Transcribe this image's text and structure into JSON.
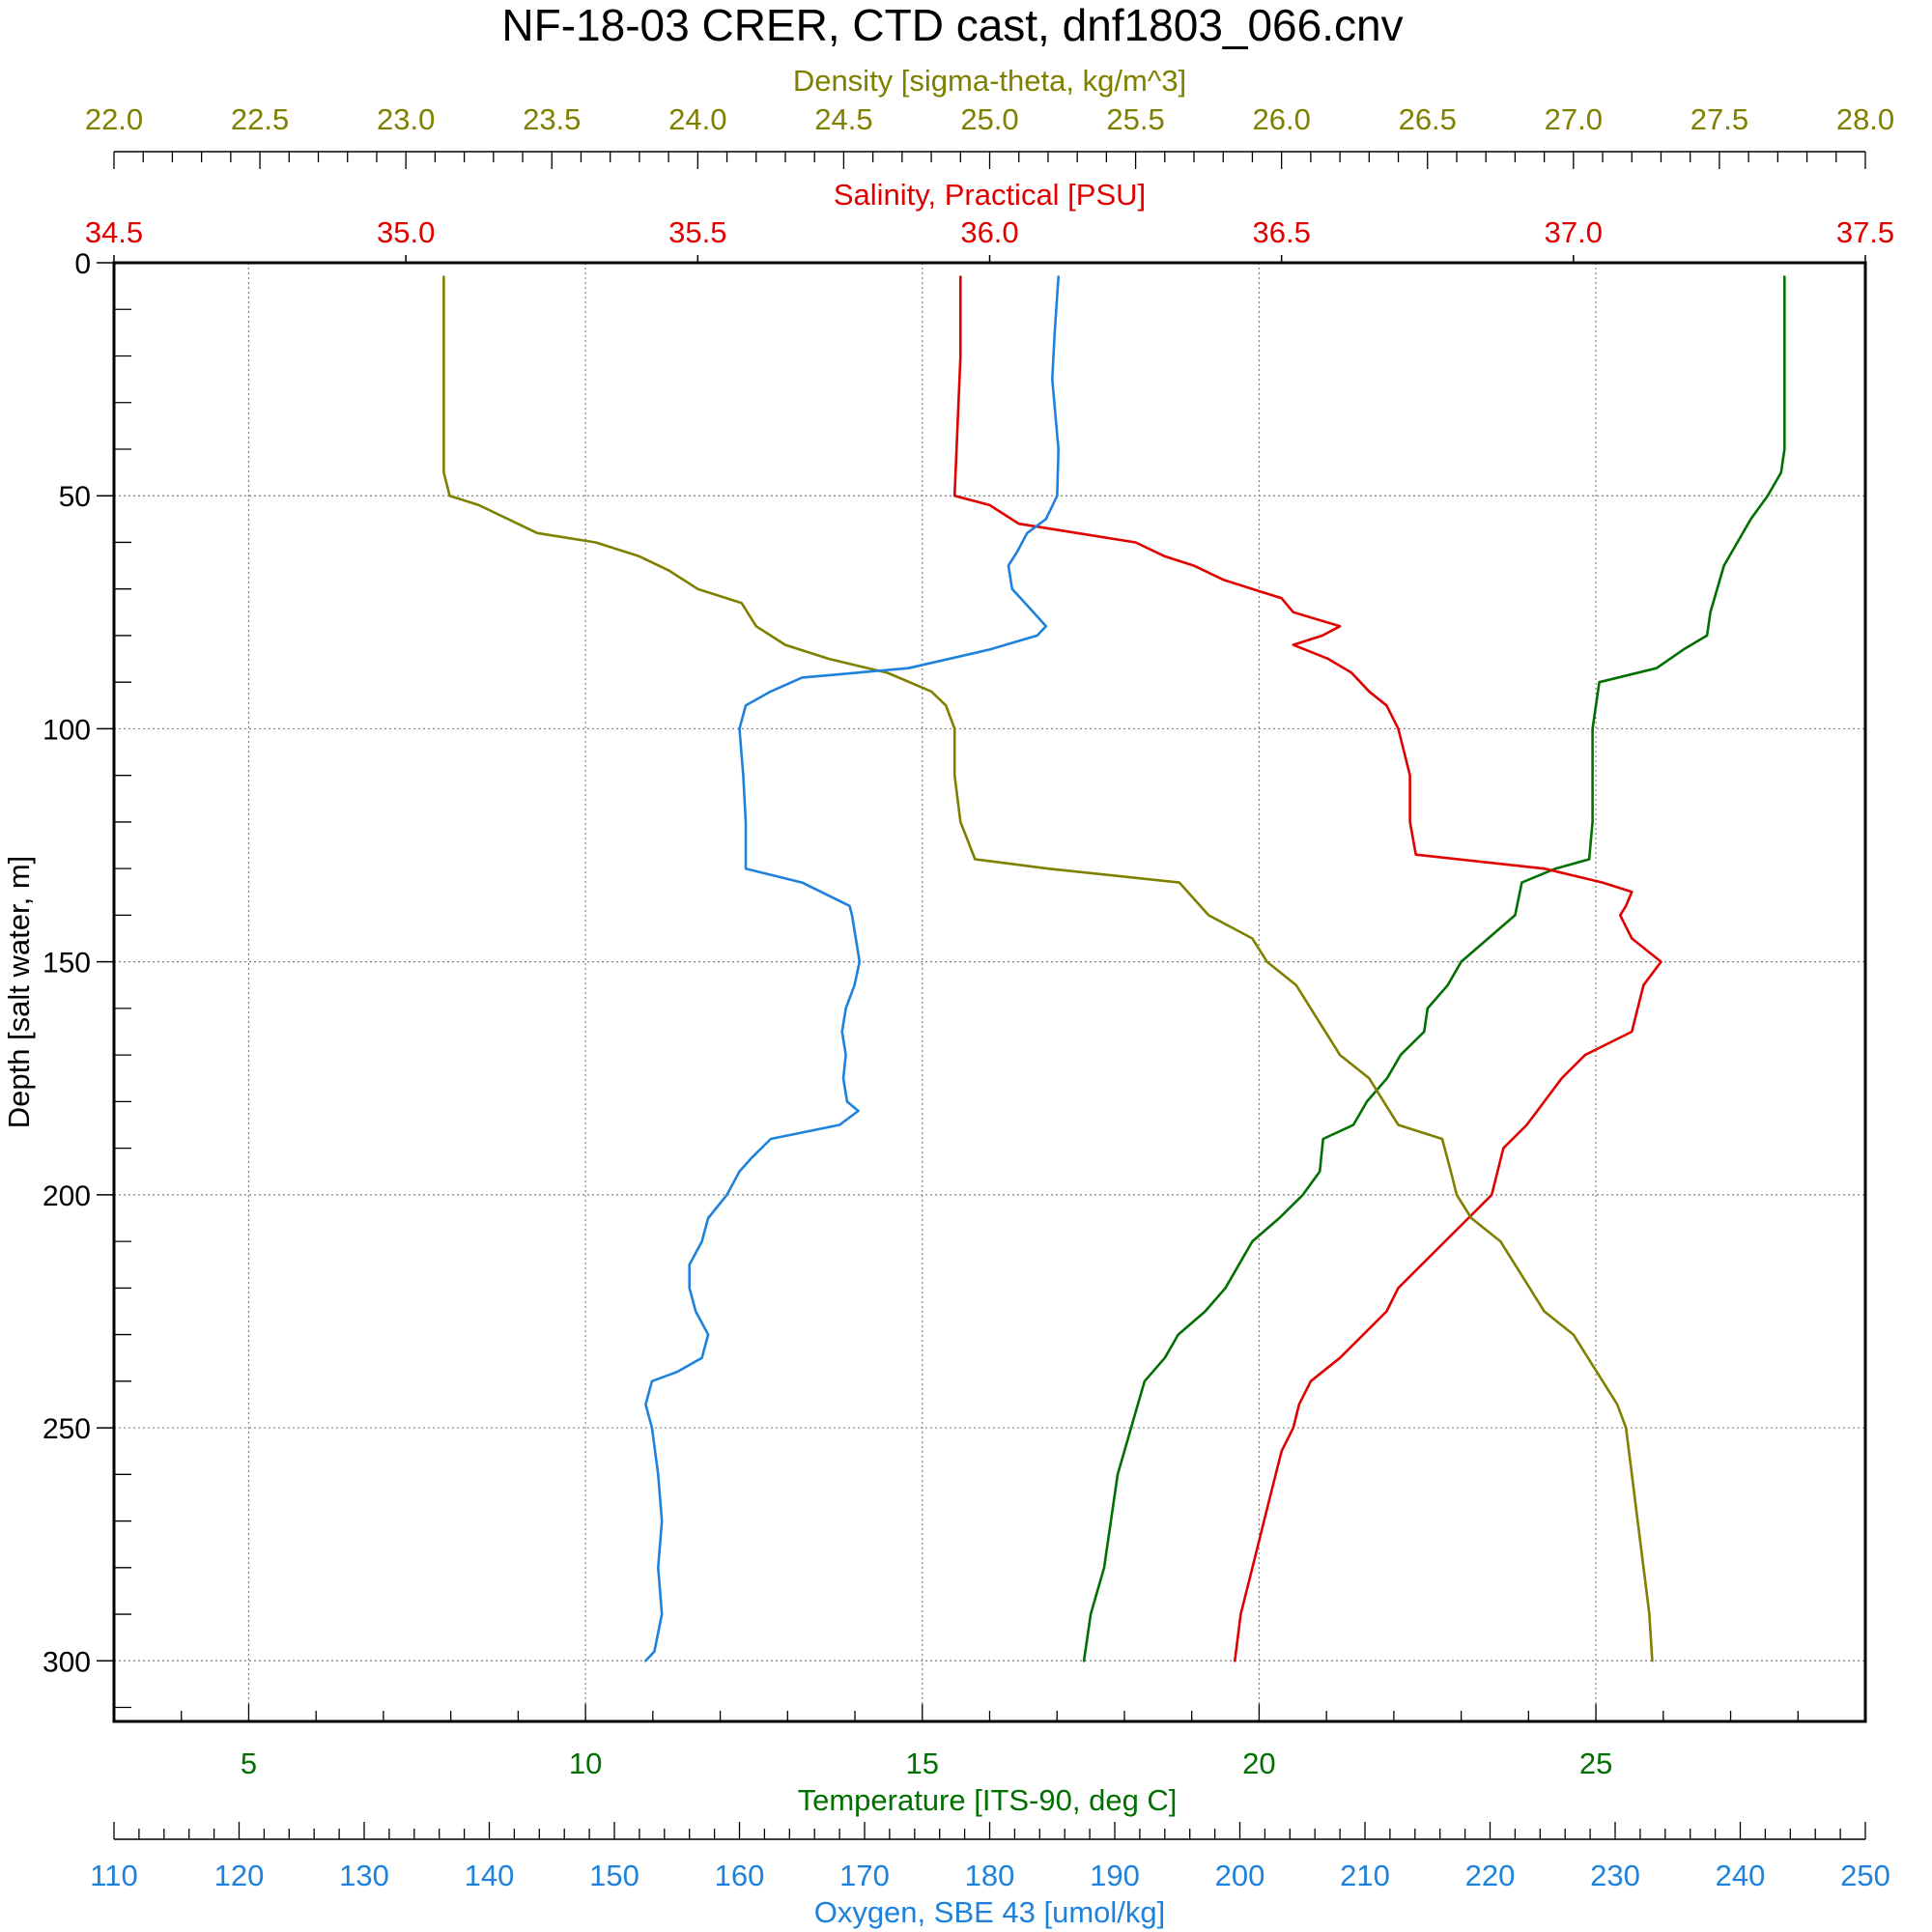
{
  "chart_data": {
    "type": "line",
    "title": "NF-18-03 CRER, CTD cast, dnf1803_066.cnv",
    "y_axis": {
      "label": "Depth [salt water, m]",
      "range": [
        0,
        313
      ],
      "inverted": true,
      "ticks": [
        "0",
        "50",
        "100",
        "150",
        "200",
        "250",
        "300"
      ]
    },
    "x_axes": [
      {
        "key": "density",
        "label": "Density [sigma-theta, kg/m^3]",
        "position": "top",
        "range": [
          22.0,
          28.0
        ],
        "color": "#7f7f00",
        "ticks": [
          "22.0",
          "22.5",
          "23.0",
          "23.5",
          "24.0",
          "24.5",
          "25.0",
          "25.5",
          "26.0",
          "26.5",
          "27.0",
          "27.5",
          "28.0"
        ]
      },
      {
        "key": "salinity",
        "label": "Salinity, Practical [PSU]",
        "position": "top",
        "range": [
          34.5,
          37.5
        ],
        "color": "#e00000",
        "ticks": [
          "34.5",
          "35.0",
          "35.5",
          "36.0",
          "36.5",
          "37.0",
          "37.5"
        ]
      },
      {
        "key": "temperature",
        "label": "Temperature [ITS-90, deg C]",
        "position": "bottom",
        "range": [
          3.0,
          29.0
        ],
        "color": "#007000",
        "ticks": [
          "5",
          "10",
          "15",
          "20",
          "25"
        ]
      },
      {
        "key": "oxygen",
        "label": "Oxygen, SBE 43 [umol/kg]",
        "position": "bottom",
        "range": [
          110,
          250
        ],
        "color": "#1e82dc",
        "ticks": [
          "110",
          "120",
          "130",
          "140",
          "150",
          "160",
          "170",
          "180",
          "190",
          "200",
          "210",
          "220",
          "230",
          "240",
          "250"
        ]
      }
    ],
    "grid": true,
    "series": [
      {
        "axis": "temperature",
        "color": "#007000",
        "depth": [
          3,
          40,
          45,
          50,
          55,
          60,
          65,
          70,
          75,
          80,
          83,
          87,
          90,
          95,
          100,
          110,
          120,
          128,
          130,
          133,
          140,
          145,
          150,
          155,
          160,
          165,
          170,
          175,
          180,
          185,
          188,
          195,
          200,
          205,
          210,
          215,
          220,
          225,
          230,
          235,
          240,
          245,
          250,
          260,
          270,
          280,
          290,
          300
        ],
        "values": [
          27.8,
          27.8,
          27.75,
          27.55,
          27.3,
          27.1,
          26.9,
          26.8,
          26.7,
          26.65,
          26.3,
          25.9,
          25.05,
          25.0,
          24.95,
          24.95,
          24.95,
          24.9,
          24.4,
          23.9,
          23.8,
          23.4,
          23.0,
          22.8,
          22.5,
          22.45,
          22.1,
          21.9,
          21.6,
          21.4,
          20.95,
          20.9,
          20.65,
          20.3,
          19.9,
          19.7,
          19.5,
          19.2,
          18.8,
          18.6,
          18.3,
          18.2,
          18.1,
          17.9,
          17.8,
          17.7,
          17.5,
          17.4
        ]
      },
      {
        "axis": "salinity",
        "color": "#e00000",
        "depth": [
          3,
          20,
          50,
          52,
          56,
          58,
          60,
          63,
          65,
          68,
          70,
          72,
          75,
          78,
          80,
          82,
          85,
          88,
          92,
          95,
          100,
          110,
          120,
          127,
          130,
          133,
          135,
          138,
          140,
          145,
          150,
          155,
          160,
          165,
          170,
          175,
          180,
          185,
          190,
          200,
          205,
          210,
          215,
          220,
          225,
          230,
          235,
          240,
          245,
          250,
          255,
          260,
          270,
          280,
          290,
          300
        ],
        "values": [
          35.95,
          35.95,
          35.94,
          36.0,
          36.05,
          36.15,
          36.25,
          36.3,
          36.35,
          36.4,
          36.45,
          36.5,
          36.52,
          36.6,
          36.57,
          36.52,
          36.58,
          36.62,
          36.65,
          36.68,
          36.7,
          36.72,
          36.72,
          36.73,
          36.95,
          37.05,
          37.1,
          37.09,
          37.08,
          37.1,
          37.15,
          37.12,
          37.11,
          37.1,
          37.02,
          36.98,
          36.95,
          36.92,
          36.88,
          36.86,
          36.82,
          36.78,
          36.74,
          36.7,
          36.68,
          36.64,
          36.6,
          36.55,
          36.53,
          36.52,
          36.5,
          36.49,
          36.47,
          36.45,
          36.43,
          36.42
        ]
      },
      {
        "axis": "density",
        "color": "#7f7f00",
        "depth": [
          3,
          45,
          50,
          52,
          55,
          58,
          60,
          63,
          66,
          70,
          73,
          78,
          82,
          85,
          88,
          92,
          95,
          100,
          110,
          120,
          128,
          130,
          133,
          140,
          145,
          150,
          155,
          160,
          165,
          170,
          175,
          180,
          185,
          188,
          195,
          200,
          205,
          210,
          215,
          220,
          225,
          230,
          235,
          240,
          245,
          250,
          260,
          270,
          280,
          290,
          300
        ],
        "values": [
          23.13,
          23.13,
          23.15,
          23.25,
          23.35,
          23.45,
          23.65,
          23.8,
          23.9,
          24.0,
          24.15,
          24.2,
          24.3,
          24.45,
          24.65,
          24.8,
          24.85,
          24.88,
          24.88,
          24.9,
          24.95,
          25.2,
          25.65,
          25.75,
          25.9,
          25.95,
          26.05,
          26.1,
          26.15,
          26.2,
          26.3,
          26.35,
          26.4,
          26.55,
          26.58,
          26.6,
          26.65,
          26.75,
          26.8,
          26.85,
          26.9,
          27.0,
          27.05,
          27.1,
          27.15,
          27.18,
          27.2,
          27.22,
          27.24,
          27.26,
          27.27
        ]
      },
      {
        "axis": "oxygen",
        "color": "#1e82dc",
        "depth": [
          3,
          15,
          25,
          40,
          50,
          55,
          58,
          62,
          65,
          70,
          75,
          78,
          80,
          83,
          87,
          89,
          92,
          95,
          100,
          110,
          120,
          130,
          133,
          138,
          140,
          145,
          150,
          155,
          160,
          165,
          170,
          175,
          180,
          182,
          185,
          188,
          192,
          195,
          200,
          205,
          210,
          215,
          220,
          225,
          230,
          235,
          238,
          240,
          245,
          250,
          260,
          270,
          280,
          290,
          298,
          300
        ],
        "values": [
          185.5,
          185.2,
          185.0,
          185.5,
          185.4,
          184.5,
          183.0,
          182.2,
          181.5,
          181.8,
          183.5,
          184.5,
          183.8,
          180.0,
          173.5,
          165.0,
          162.5,
          160.5,
          160.0,
          160.3,
          160.5,
          160.5,
          165.0,
          168.8,
          169.0,
          169.3,
          169.6,
          169.2,
          168.5,
          168.2,
          168.5,
          168.3,
          168.6,
          169.5,
          168.0,
          162.5,
          161.0,
          160.0,
          159.0,
          157.5,
          157.0,
          156.0,
          156.0,
          156.5,
          157.5,
          157.0,
          155.0,
          153.0,
          152.5,
          153.0,
          153.5,
          153.8,
          153.5,
          153.8,
          153.2,
          152.5
        ]
      }
    ]
  }
}
